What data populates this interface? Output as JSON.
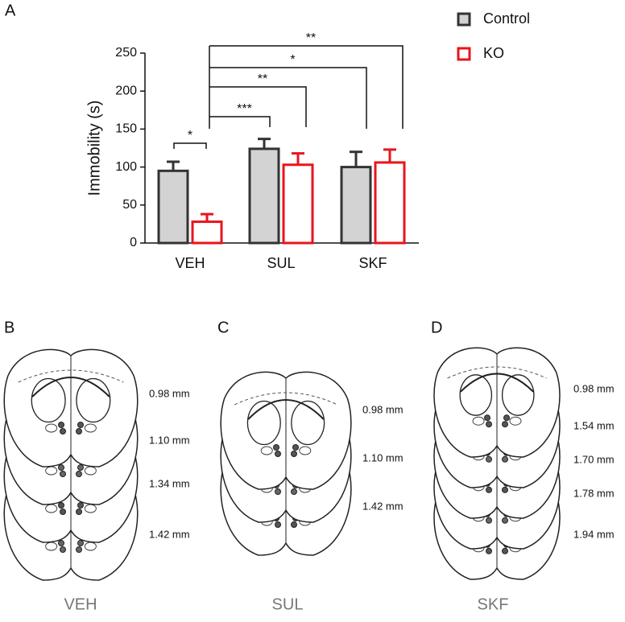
{
  "chart_data": {
    "type": "bar",
    "panel_label": "A",
    "y_label": "Immobility (s)",
    "categories": [
      "VEH",
      "SUL",
      "SKF"
    ],
    "series": [
      {
        "name": "Control",
        "color": "#d3d3d3",
        "edge": "#333333",
        "values": [
          95,
          124,
          100
        ],
        "errors": [
          12,
          13,
          20
        ]
      },
      {
        "name": "KO",
        "color": "#ffffff",
        "edge": "#e8151b",
        "values": [
          28,
          103,
          106
        ],
        "errors": [
          10,
          15,
          17
        ]
      }
    ],
    "ylim": [
      0,
      250
    ],
    "yticks": [
      0,
      50,
      100,
      150,
      200,
      250
    ],
    "significance": [
      "*",
      "***",
      "**",
      "*",
      "**"
    ]
  },
  "panels": [
    {
      "label": "B",
      "levels": [
        "0.98 mm",
        "1.10 mm",
        "1.34 mm",
        "1.42 mm"
      ],
      "caption": "VEH"
    },
    {
      "label": "C",
      "levels": [
        "0.98 mm",
        "1.10 mm",
        "1.42 mm"
      ],
      "caption": "SUL"
    },
    {
      "label": "D",
      "levels": [
        "0.98 mm",
        "1.54 mm",
        "1.70 mm",
        "1.78 mm",
        "1.94 mm"
      ],
      "caption": "SKF"
    }
  ]
}
